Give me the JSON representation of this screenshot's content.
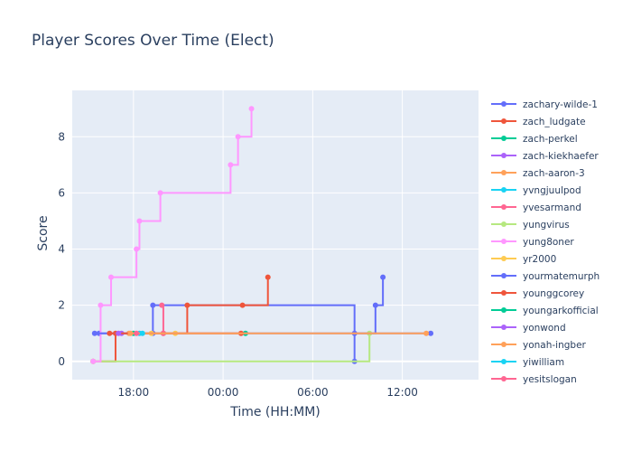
{
  "chart_data": {
    "type": "line",
    "line_shape": "step",
    "title": "Player Scores Over Time (Elect)",
    "xlabel": "Time (HH:MM)",
    "ylabel": "Score",
    "x_unit": "hours_since_midnight_day1",
    "xlim": [
      13.9,
      41.1
    ],
    "ylim": [
      -0.65,
      9.65
    ],
    "x_ticks": [
      {
        "value": 18,
        "label": "18:00"
      },
      {
        "value": 24,
        "label": "00:00"
      },
      {
        "value": 30,
        "label": "06:00"
      },
      {
        "value": 36,
        "label": "12:00"
      }
    ],
    "y_ticks": [
      0,
      2,
      4,
      6,
      8
    ],
    "grid": true,
    "legend_position": "right",
    "plot_bgcolor": "#E5ECF6",
    "series": [
      {
        "name": "zachary-wilde-1",
        "color": "#636efa",
        "x": [
          15.7,
          19.3,
          19.3,
          32.8,
          32.8,
          34.2,
          34.7
        ],
        "y": [
          1,
          1,
          2,
          0,
          1,
          2,
          3
        ]
      },
      {
        "name": "zach_ludgate",
        "color": "#EF553B",
        "x": [
          15.3,
          16.8,
          20.0,
          21.6,
          25.3,
          27.0
        ],
        "y": [
          0,
          1,
          1,
          2,
          2,
          3
        ]
      },
      {
        "name": "zach-perkel",
        "color": "#00cc96",
        "x": [
          25.5
        ],
        "y": [
          1
        ]
      },
      {
        "name": "zach-kiekhaefer",
        "color": "#ab63fa",
        "x": [
          17.2
        ],
        "y": [
          1
        ]
      },
      {
        "name": "zach-aaron-3",
        "color": "#FFA15A",
        "x": [
          17.7
        ],
        "y": [
          1
        ]
      },
      {
        "name": "yvngjuulpod",
        "color": "#19d3f3",
        "x": [
          18.4
        ],
        "y": [
          1
        ]
      },
      {
        "name": "yvesarmand",
        "color": "#FF6692",
        "x": [
          19.9,
          20.0
        ],
        "y": [
          2,
          1
        ]
      },
      {
        "name": "yungvirus",
        "color": "#B6E880",
        "x": [
          15.3,
          33.8
        ],
        "y": [
          0,
          1
        ]
      },
      {
        "name": "yung8oner",
        "color": "#FF97FF",
        "x": [
          15.3,
          15.8,
          16.5,
          18.2,
          18.4,
          19.8,
          24.5,
          25.0,
          25.9
        ],
        "y": [
          0,
          2,
          3,
          4,
          5,
          6,
          7,
          8,
          9
        ]
      },
      {
        "name": "yr2000",
        "color": "#FECB52",
        "x": [
          19.2,
          20.8
        ],
        "y": [
          1,
          1
        ]
      },
      {
        "name": "yourmatemurph",
        "color": "#636efa",
        "x": [
          15.4,
          37.9
        ],
        "y": [
          1,
          1
        ]
      },
      {
        "name": "younggcorey",
        "color": "#EF553B",
        "x": [
          16.4,
          25.2
        ],
        "y": [
          1,
          1
        ]
      },
      {
        "name": "youngarkofficial",
        "color": "#00cc96",
        "x": [
          18.0
        ],
        "y": [
          1
        ]
      },
      {
        "name": "yonwond",
        "color": "#ab63fa",
        "x": [
          17.0
        ],
        "y": [
          1
        ]
      },
      {
        "name": "yonah-ingber",
        "color": "#FFA15A",
        "x": [
          37.6,
          17.8
        ],
        "y": [
          1,
          1
        ]
      },
      {
        "name": "yiwilliam",
        "color": "#19d3f3",
        "x": [
          18.6
        ],
        "y": [
          1
        ]
      },
      {
        "name": "yesitslogan",
        "color": "#FF6692",
        "x": [
          18.2
        ],
        "y": [
          1
        ]
      }
    ]
  }
}
